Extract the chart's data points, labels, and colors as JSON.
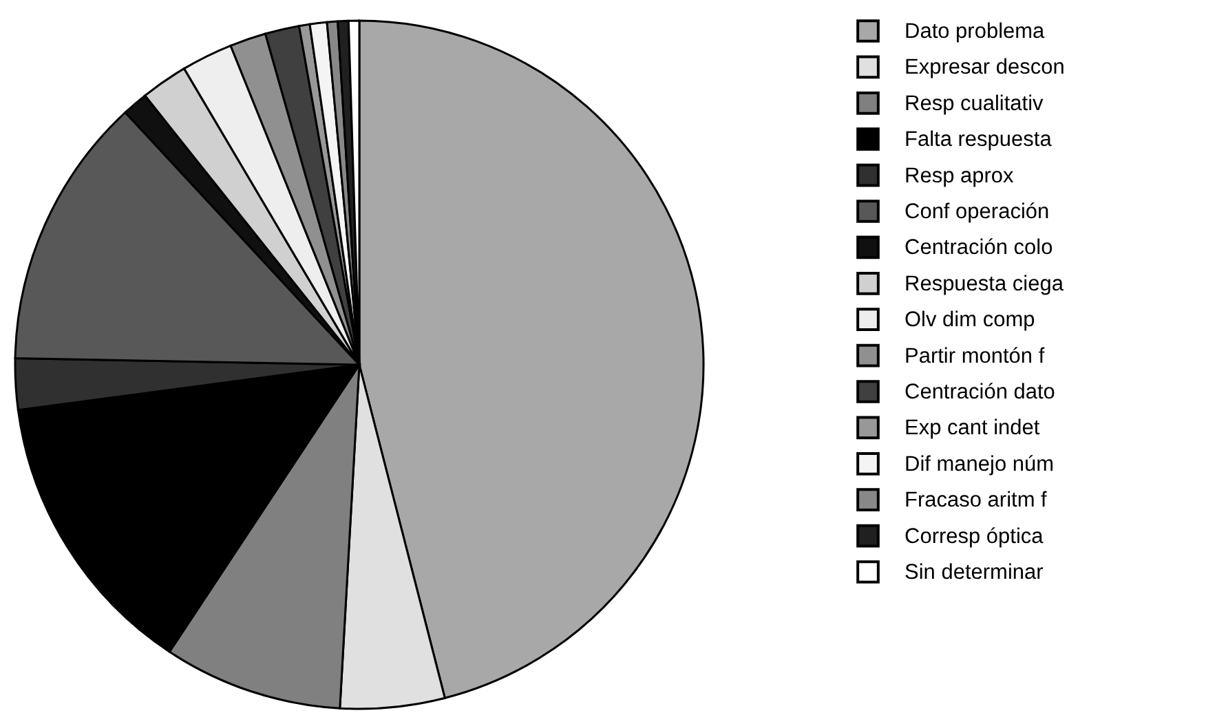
{
  "chart_data": {
    "type": "pie",
    "categories": [
      "Dato problema",
      "Expresar descon",
      "Resp cualitativ",
      "Falta respuesta",
      "Resp aprox",
      "Conf operación",
      "Centración colo",
      "Respuesta ciega",
      "Olv dim comp",
      "Partir montón f",
      "Centración dato",
      "Exp cant indet",
      "Dif manejo núm",
      "Fracaso aritm f",
      "Corresp óptica",
      "Sin determinar"
    ],
    "values": [
      46,
      4.9,
      8.4,
      13.6,
      2.4,
      12.8,
      1.2,
      2.2,
      2.4,
      1.7,
      1.6,
      0.5,
      0.8,
      0.5,
      0.5,
      0.5
    ],
    "colors": [
      "#a8a8a8",
      "#e0e0e0",
      "#808080",
      "#000000",
      "#303030",
      "#585858",
      "#101010",
      "#d0d0d0",
      "#eeeeee",
      "#909090",
      "#404040",
      "#989898",
      "#f4f4f4",
      "#888888",
      "#202020",
      "#ffffff"
    ],
    "legend": "top right"
  }
}
